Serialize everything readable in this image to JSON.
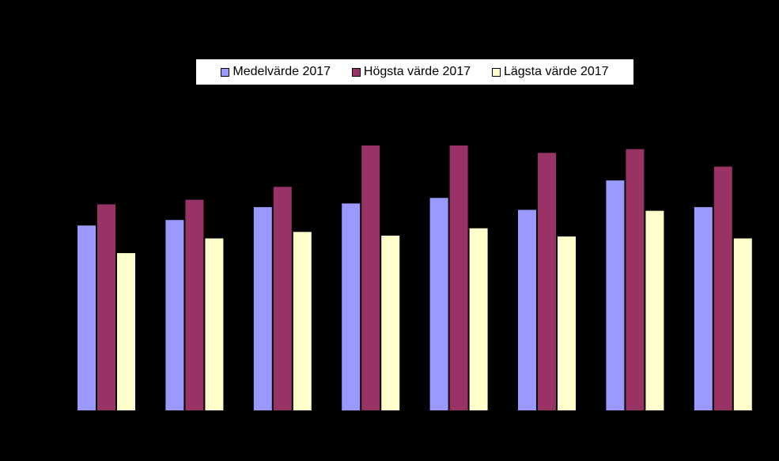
{
  "chart_data": {
    "type": "bar",
    "categories": [
      "",
      "",
      "",
      "",
      "",
      "",
      "",
      ""
    ],
    "series": [
      {
        "name": "Medelvärde 2017",
        "color": "#9999ff",
        "values": [
          201,
          207,
          221,
          225,
          231,
          218,
          250,
          221
        ]
      },
      {
        "name": "Högsta värde 2017",
        "color": "#993366",
        "values": [
          224,
          229,
          243,
          288,
          288,
          280,
          284,
          265
        ]
      },
      {
        "name": "Lägsta värde 2017",
        "color": "#ffffcc",
        "values": [
          171,
          187,
          194,
          190,
          198,
          189,
          217,
          187
        ]
      }
    ],
    "ylim": [
      0,
      300
    ],
    "legend_position": "top"
  }
}
